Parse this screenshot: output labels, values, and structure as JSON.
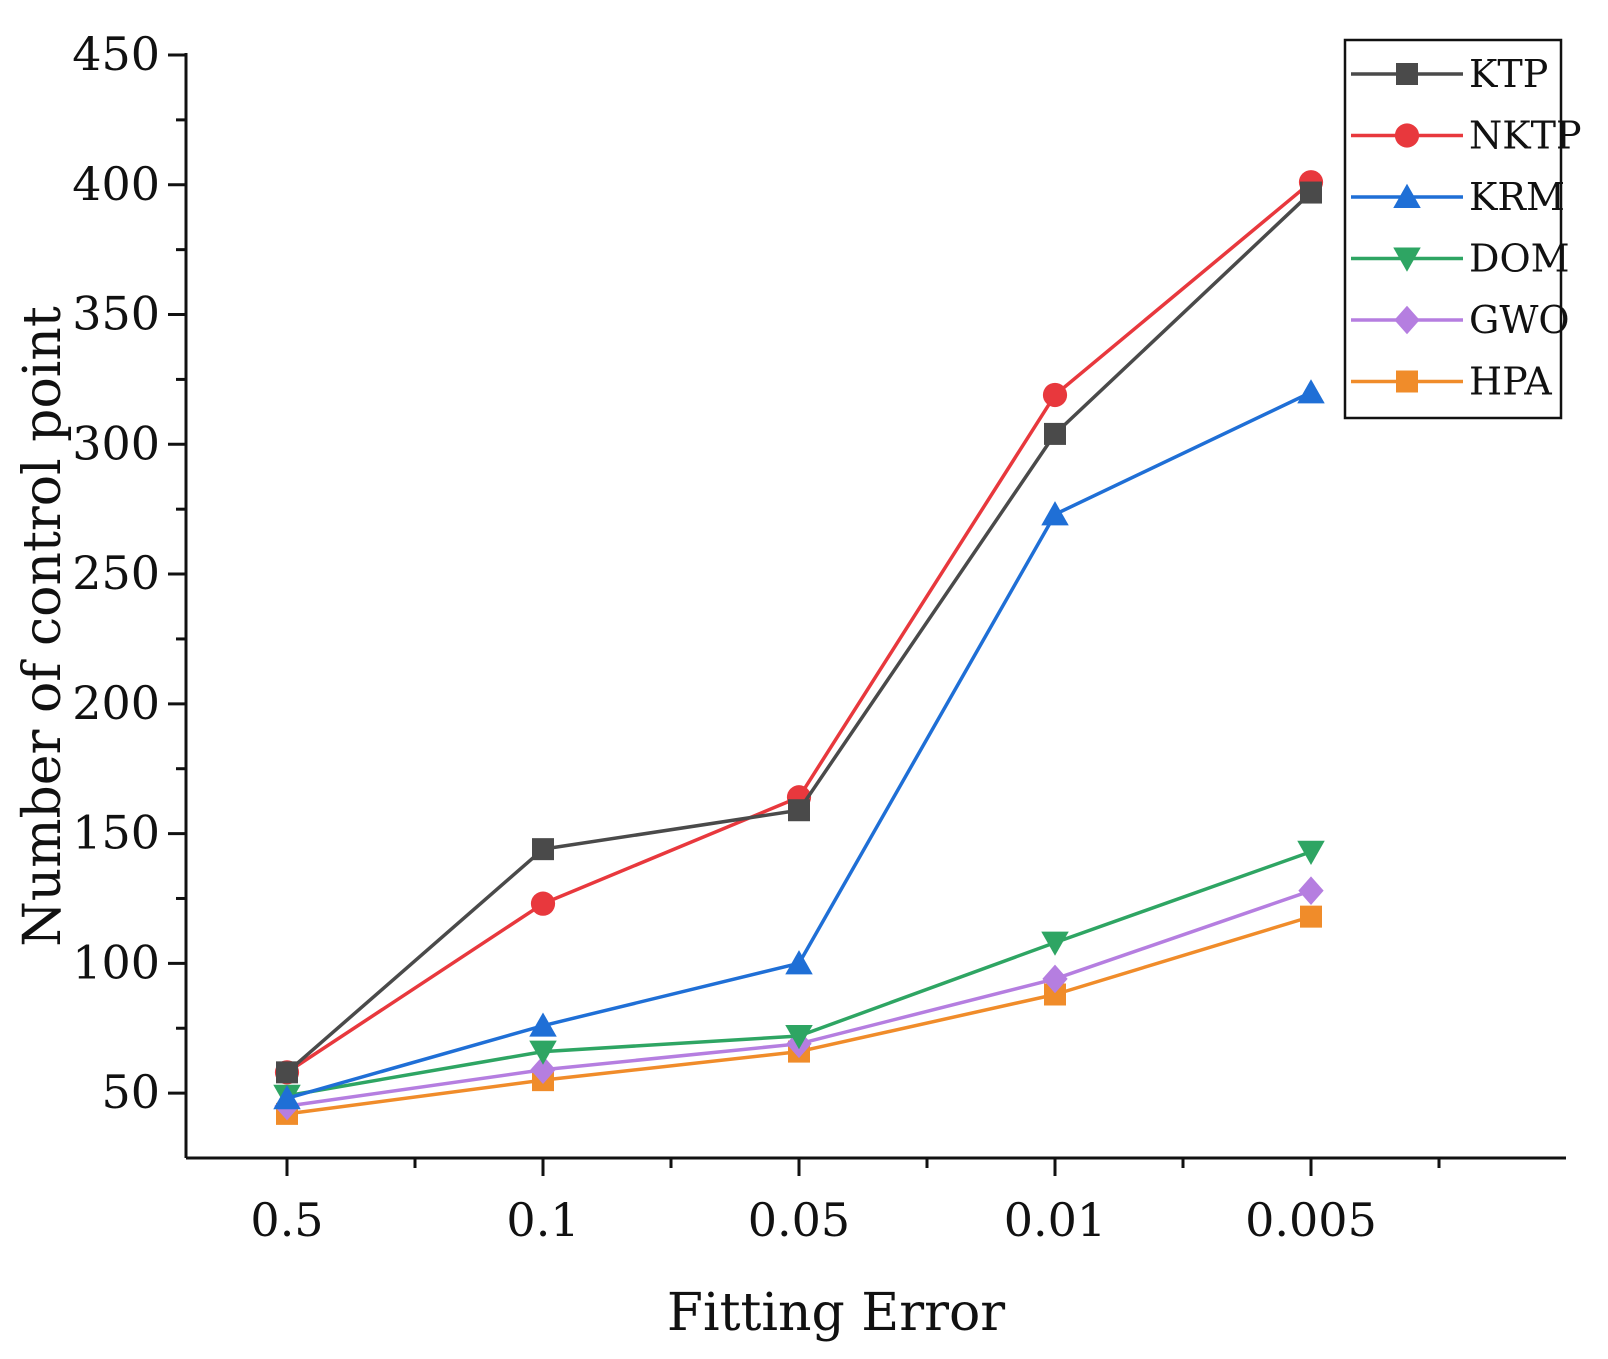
{
  "chart_data": {
    "type": "line",
    "title": "",
    "xlabel": "Fitting Error",
    "ylabel": "Number of control point",
    "categories": [
      "0.5",
      "0.1",
      "0.05",
      "0.01",
      "0.005"
    ],
    "ylim": [
      25,
      450
    ],
    "yticks": [
      50,
      100,
      150,
      200,
      250,
      300,
      350,
      400,
      450
    ],
    "ytick_labels": [
      "50",
      "100",
      "150",
      "200",
      "250",
      "300",
      "350",
      "400",
      "450"
    ],
    "legend_position": "top-right",
    "series": [
      {
        "name": "KTP",
        "color": "#4a4a4a",
        "marker": "square",
        "values": [
          58,
          144,
          159,
          304,
          397
        ]
      },
      {
        "name": "NKTP",
        "color": "#e8383d",
        "marker": "circle",
        "values": [
          58,
          123,
          164,
          319,
          401
        ]
      },
      {
        "name": "KRM",
        "color": "#1f6fd6",
        "marker": "triangle-up",
        "values": [
          48,
          76,
          100,
          273,
          320
        ]
      },
      {
        "name": "DOM",
        "color": "#2ea563",
        "marker": "triangle-down",
        "values": [
          49,
          66,
          72,
          108,
          143
        ]
      },
      {
        "name": "GWO",
        "color": "#b57ee0",
        "marker": "diamond",
        "values": [
          45,
          59,
          69,
          94,
          128
        ]
      },
      {
        "name": "HPA",
        "color": "#f08c2a",
        "marker": "square",
        "values": [
          42,
          55,
          66,
          88,
          118
        ]
      }
    ]
  }
}
